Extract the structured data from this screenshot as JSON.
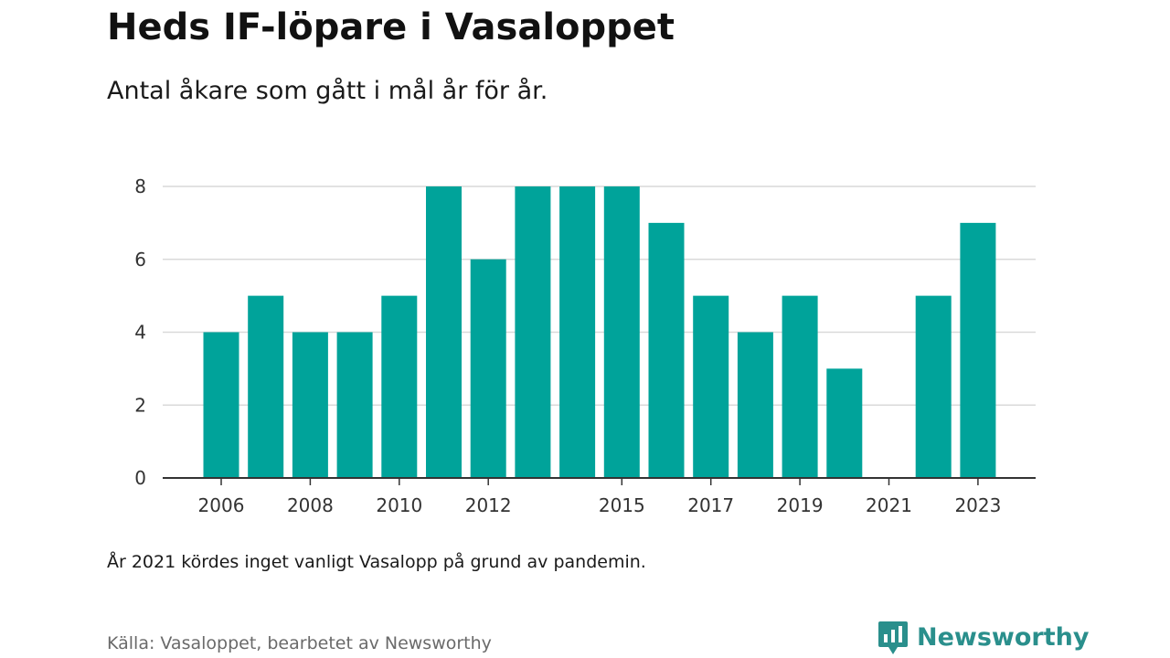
{
  "header": {
    "title": "Heds IF-löpare i Vasaloppet",
    "subtitle": "Antal åkare som gått i mål år för år."
  },
  "footer": {
    "note": "År 2021 kördes inget vanligt Vasalopp på grund av pandemin.",
    "source": "Källa: Vasaloppet, bearbetet av Newsworthy",
    "brand_name": "Newsworthy",
    "brand_icon": "newsworthy-logo-icon"
  },
  "colors": {
    "bar": "#00a39a",
    "grid": "#d9d9d9",
    "axis": "#333333",
    "brand": "#2a8f8c"
  },
  "chart_data": {
    "type": "bar",
    "categories": [
      "2006",
      "2007",
      "2008",
      "2009",
      "2010",
      "2011",
      "2012",
      "2013",
      "2014",
      "2015",
      "2016",
      "2017",
      "2018",
      "2019",
      "2020",
      "2021",
      "2022",
      "2023"
    ],
    "values": [
      4,
      5,
      4,
      4,
      5,
      8,
      6,
      8,
      8,
      8,
      7,
      5,
      4,
      5,
      3,
      0,
      5,
      7
    ],
    "x_tick_labels": [
      "2006",
      "2008",
      "2010",
      "2012",
      "2015",
      "2017",
      "2019",
      "2021",
      "2023"
    ],
    "y_ticks": [
      0,
      2,
      4,
      6,
      8
    ],
    "ylim": [
      0,
      8
    ],
    "grid": true,
    "legend": "none"
  }
}
